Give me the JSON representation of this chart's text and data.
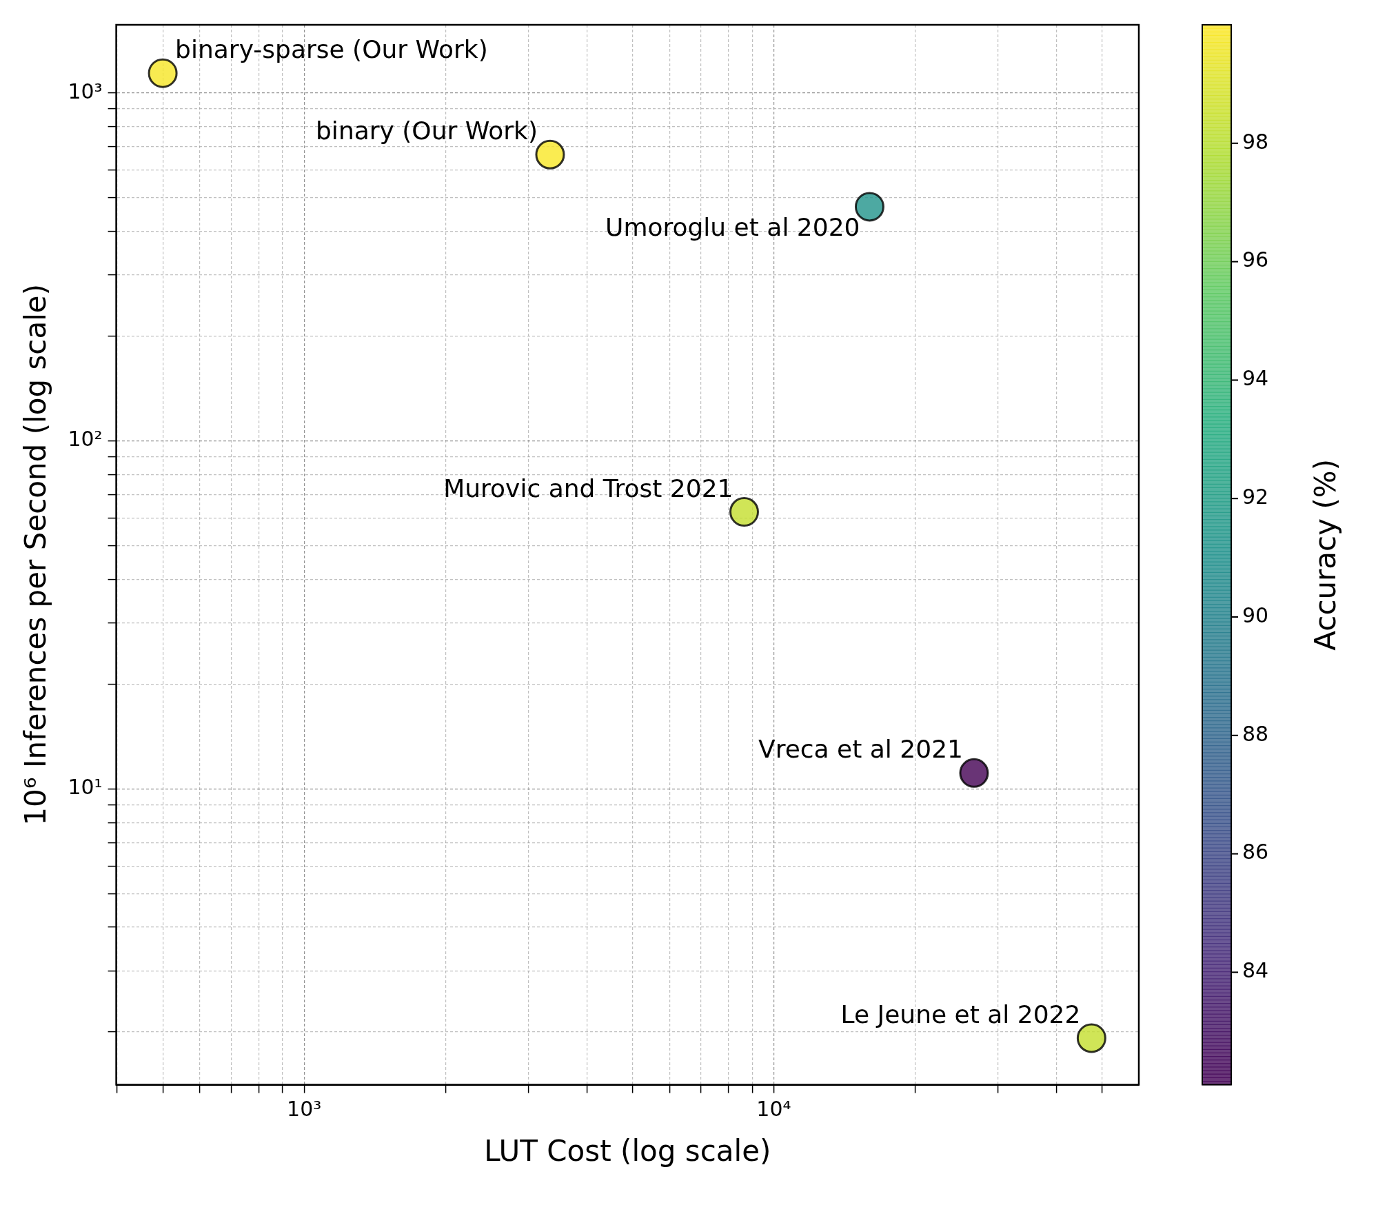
{
  "chart_data": {
    "type": "scatter",
    "xlabel": "LUT Cost (log scale)",
    "ylabel": "10⁶ Inferences per Second (log scale)",
    "clabel": "Accuracy (%)",
    "x": [
      500,
      3340,
      16000,
      8650,
      26700,
      47500
    ],
    "values": [
      1140,
      665,
      471,
      62.5,
      11.1,
      1.92
    ],
    "cvalues": [
      99.8,
      99.9,
      91.2,
      98.4,
      82.1,
      98.4
    ],
    "clim": [
      82.1,
      100
    ],
    "cticks": [
      84,
      86,
      88,
      90,
      92,
      94,
      96,
      98
    ],
    "log": "xy",
    "grid": true,
    "legend": false,
    "marker": "circle",
    "xlim": [
      398,
      59900
    ],
    "ylim": [
      1.41,
      1570
    ],
    "xticks": [
      {
        "value": 400,
        "label": null
      },
      {
        "value": 500,
        "label": null
      },
      {
        "value": 600,
        "label": null
      },
      {
        "value": 700,
        "label": null
      },
      {
        "value": 800,
        "label": null
      },
      {
        "value": 900,
        "label": null
      },
      {
        "value": 1000,
        "label": "10³"
      },
      {
        "value": 2000,
        "label": null
      },
      {
        "value": 3000,
        "label": null
      },
      {
        "value": 4000,
        "label": null
      },
      {
        "value": 5000,
        "label": null
      },
      {
        "value": 6000,
        "label": null
      },
      {
        "value": 7000,
        "label": null
      },
      {
        "value": 8000,
        "label": null
      },
      {
        "value": 9000,
        "label": null
      },
      {
        "value": 10000,
        "label": "10⁴"
      },
      {
        "value": 20000,
        "label": null
      },
      {
        "value": 30000,
        "label": null
      },
      {
        "value": 40000,
        "label": null
      },
      {
        "value": 50000,
        "label": null
      }
    ],
    "yticks": [
      {
        "value": 2,
        "label": null
      },
      {
        "value": 3,
        "label": null
      },
      {
        "value": 4,
        "label": null
      },
      {
        "value": 5,
        "label": null
      },
      {
        "value": 6,
        "label": null
      },
      {
        "value": 7,
        "label": null
      },
      {
        "value": 8,
        "label": null
      },
      {
        "value": 9,
        "label": null
      },
      {
        "value": 10,
        "label": "10¹"
      },
      {
        "value": 20,
        "label": null
      },
      {
        "value": 30,
        "label": null
      },
      {
        "value": 40,
        "label": null
      },
      {
        "value": 50,
        "label": null
      },
      {
        "value": 60,
        "label": null
      },
      {
        "value": 70,
        "label": null
      },
      {
        "value": 80,
        "label": null
      },
      {
        "value": 90,
        "label": null
      },
      {
        "value": 100,
        "label": "10²"
      },
      {
        "value": 200,
        "label": null
      },
      {
        "value": 300,
        "label": null
      },
      {
        "value": 400,
        "label": null
      },
      {
        "value": 500,
        "label": null
      },
      {
        "value": 600,
        "label": null
      },
      {
        "value": 700,
        "label": null
      },
      {
        "value": 800,
        "label": null
      },
      {
        "value": 900,
        "label": null
      },
      {
        "value": 1000,
        "label": "10³"
      }
    ],
    "annotations": [
      {
        "text": "binary-sparse (Our Work)",
        "x": 500,
        "y": 1140
      },
      {
        "text": "binary (Our Work)",
        "x": 3340,
        "y": 665
      },
      {
        "text": "Umoroglu et al 2020",
        "x": 16000,
        "y": 471
      },
      {
        "text": "Murovic and Trost 2021",
        "x": 8650,
        "y": 62.5
      },
      {
        "text": "Vreca et al 2021",
        "x": 26700,
        "y": 11.1
      },
      {
        "text": "Le Jeune et al 2022",
        "x": 47500,
        "y": 1.92
      }
    ]
  }
}
